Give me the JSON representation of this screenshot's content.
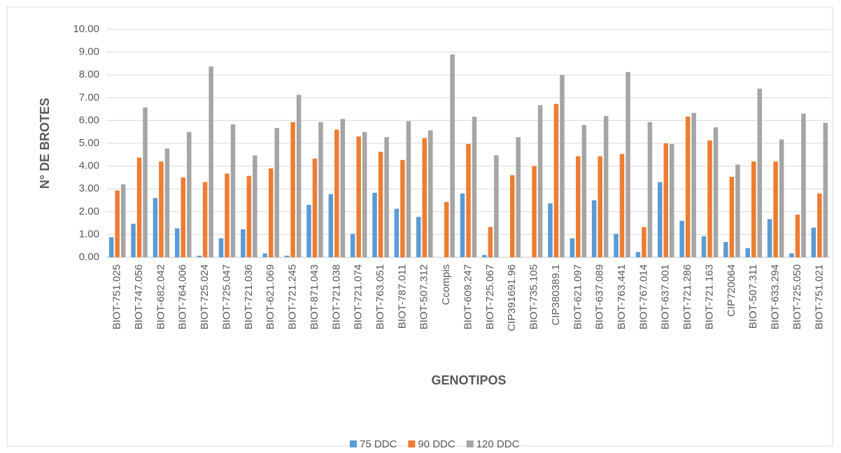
{
  "chart_data": {
    "type": "bar",
    "ylabel": "N° DE BROTES",
    "xlabel": "GENOTIPOS",
    "categories": [
      "BIOT-751.025",
      "BIOT-747.056",
      "BIOT-682.042",
      "BIOT-764.006",
      "BIOT-725.024",
      "BIOT-725.047",
      "BIOT-721.036",
      "BIOT-621.069",
      "BIOT-721.245",
      "BIOT-871.043",
      "BIOT-721.038",
      "BIOT-721.074",
      "BIOT-763.051",
      "BIOT-787.011",
      "BIOT-507.312",
      "Ccompis",
      "BIOT-609.247",
      "BIOT-725.067",
      "CIP391691.96",
      "BIOT-735.105",
      "CIP380389.1",
      "BIOT-621.097",
      "BIOT-637.089",
      "BIOT-763.441",
      "BIOT-767.014",
      "BIOT-637.001",
      "BIOT-721.286",
      "BIOT-721.163",
      "CIP720064",
      "BIOT-507.311",
      "BIOT-633.294",
      "BIOT-725.050",
      "BIOT-751.021"
    ],
    "series": [
      {
        "name": "75 DDC",
        "color": "#5b9bd5",
        "values": [
          0.88,
          1.47,
          2.6,
          1.27,
          0.07,
          0.83,
          1.23,
          0.17,
          0.07,
          2.3,
          2.77,
          1.03,
          2.83,
          2.13,
          1.77,
          0,
          2.8,
          0.1,
          0,
          0,
          2.37,
          0.83,
          2.5,
          1.03,
          0.23,
          3.3,
          1.6,
          0.92,
          0.67,
          0.4,
          1.67,
          0.17,
          1.3
        ]
      },
      {
        "name": "90 DDC",
        "color": "#ed7d31",
        "values": [
          2.93,
          4.37,
          4.2,
          3.5,
          3.3,
          3.67,
          3.57,
          3.9,
          5.93,
          4.33,
          5.6,
          5.3,
          4.63,
          4.27,
          5.23,
          2.43,
          4.97,
          1.33,
          3.6,
          4.0,
          6.73,
          4.43,
          4.43,
          4.53,
          1.33,
          5.0,
          6.17,
          5.13,
          3.53,
          4.2,
          4.2,
          1.87,
          2.8
        ]
      },
      {
        "name": "120 DDC",
        "color": "#a5a5a5",
        "values": [
          3.2,
          6.57,
          4.77,
          5.5,
          8.37,
          5.83,
          4.47,
          5.67,
          7.13,
          5.93,
          6.07,
          5.5,
          5.27,
          5.97,
          5.57,
          8.9,
          6.17,
          4.47,
          5.27,
          6.67,
          8.0,
          5.8,
          6.2,
          8.13,
          5.93,
          4.97,
          6.33,
          5.7,
          4.07,
          7.4,
          5.17,
          6.3,
          5.9
        ]
      }
    ],
    "ylim": [
      0,
      10
    ],
    "yticks": [
      {
        "value": 0,
        "label": "0.00"
      },
      {
        "value": 1,
        "label": "1.00"
      },
      {
        "value": 2,
        "label": "2.00"
      },
      {
        "value": 3,
        "label": "3.00"
      },
      {
        "value": 4,
        "label": "4.00"
      },
      {
        "value": 5,
        "label": "5.00"
      },
      {
        "value": 6,
        "label": "6.00"
      },
      {
        "value": 7,
        "label": "7.00"
      },
      {
        "value": 8,
        "label": "8.00"
      },
      {
        "value": 9,
        "label": "9.00"
      },
      {
        "value": 10,
        "label": "10.00"
      }
    ],
    "grid": true,
    "legend": "bottom"
  }
}
